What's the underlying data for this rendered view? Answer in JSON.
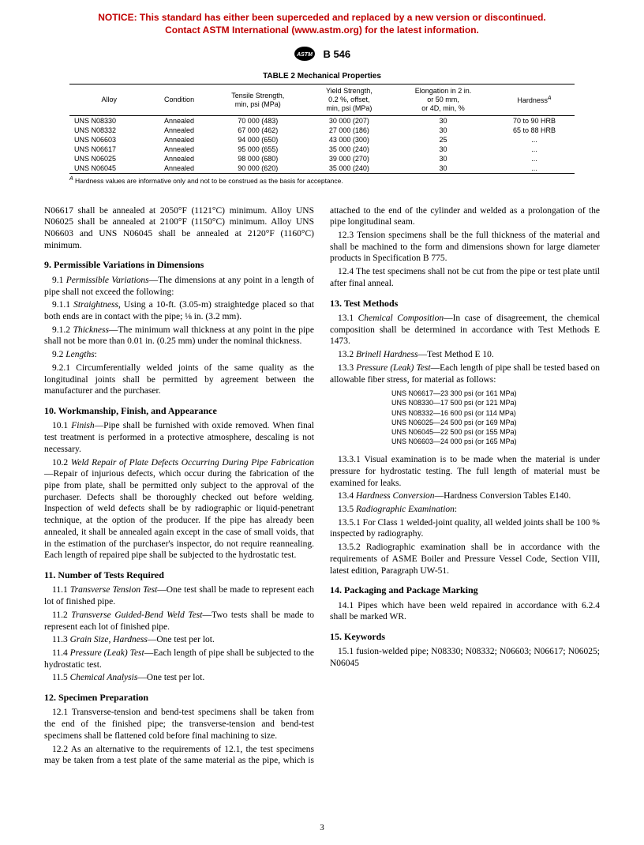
{
  "notice": {
    "line1": "NOTICE: This standard has either been superceded and replaced by a new version or discontinued.",
    "line2": "Contact ASTM International (www.astm.org) for the latest information."
  },
  "header": {
    "designation": "B 546"
  },
  "table": {
    "title": "TABLE 2  Mechanical Properties",
    "columns": [
      "Alloy",
      "Condition",
      "Tensile Strength,\nmin, psi (MPa)",
      "Yield Strength,\n0.2 %, offset,\nmin, psi (MPa)",
      "Elongation in 2 in.\nor 50 mm,\nor 4D, min, %",
      "Hardness"
    ],
    "hardness_sup": "A",
    "rows": [
      [
        "UNS N08330",
        "Annealed",
        "70 000 (483)",
        "30 000 (207)",
        "30",
        "70 to 90 HRB"
      ],
      [
        "UNS N08332",
        "Annealed",
        "67 000 (462)",
        "27 000 (186)",
        "30",
        "65 to 88 HRB"
      ],
      [
        "UNS N06603",
        "Annealed",
        "94 000 (650)",
        "43 000 (300)",
        "25",
        "..."
      ],
      [
        "UNS N06617",
        "Annealed",
        "95 000 (655)",
        "35 000 (240)",
        "30",
        "..."
      ],
      [
        "UNS N06025",
        "Annealed",
        "98 000 (680)",
        "39 000 (270)",
        "30",
        "..."
      ],
      [
        "UNS N06045",
        "Annealed",
        "90 000 (620)",
        "35 000 (240)",
        "30",
        "..."
      ]
    ],
    "footnote_label": "A",
    "footnote": " Hardness values are informative only and not to be construed as the basis for acceptance."
  },
  "body": {
    "lead": "N06617 shall be annealed at 2050°F (1121°C) minimum. Alloy UNS N06025 shall be annealed at 2100°F (1150°C) minimum. Alloy UNS N06603 and UNS N06045 shall be annealed at 2120°F (1160°C) minimum.",
    "s9": {
      "title": "9.  Permissible Variations in Dimensions",
      "p91_lead": "9.1 ",
      "p91_ital": "Permissible Variations",
      "p91_rest": "—The dimensions at any point in a length of pipe shall not exceed the following:",
      "p911_lead": "9.1.1 ",
      "p911_ital": "Straightness",
      "p911_rest": ", Using a 10-ft. (3.05-m) straightedge placed so that both ends are in contact with the pipe; ⅛ in. (3.2 mm).",
      "p912_lead": "9.1.2 ",
      "p912_ital": "Thickness",
      "p912_rest": "—The minimum wall thickness at any point in the pipe shall not be more than 0.01 in. (0.25 mm) under the nominal thickness.",
      "p92_lead": "9.2 ",
      "p92_ital": "Lengths",
      "p92_rest": ":",
      "p921": "9.2.1 Circumferentially welded joints of the same quality as the longitudinal joints shall be permitted by agreement between the manufacturer and the purchaser."
    },
    "s10": {
      "title": "10.  Workmanship, Finish, and Appearance",
      "p101_lead": "10.1 ",
      "p101_ital": "Finish",
      "p101_rest": "—Pipe shall be furnished with oxide removed. When final test treatment is performed in a protective atmosphere, descaling is not necessary.",
      "p102_lead": "10.2 ",
      "p102_ital": "Weld Repair of Plate Defects Occurring During Pipe Fabrication",
      "p102_rest": "—Repair of injurious defects, which occur during the fabrication of the pipe from plate, shall be permitted only subject to the approval of the purchaser. Defects shall be thoroughly checked out before welding. Inspection of weld defects shall be by radiographic or liquid-penetrant technique, at the option of the producer. If the pipe has already been annealed, it shall be annealed again except in the case of small voids, that in the estimation of the purchaser's inspector, do not require reannealing. Each length of repaired pipe shall be subjected to the hydrostatic test."
    },
    "s11": {
      "title": "11.  Number of Tests Required",
      "p111_lead": "11.1 ",
      "p111_ital": "Transverse Tension Test",
      "p111_rest": "—One test shall be made to represent each lot of finished pipe.",
      "p112_lead": "11.2 ",
      "p112_ital": "Transverse Guided-Bend Weld Test",
      "p112_rest": "—Two tests shall be made to represent each lot of finished pipe.",
      "p113_lead": "11.3 ",
      "p113_ital": "Grain Size, Hardness",
      "p113_rest": "—One test per lot.",
      "p114_lead": "11.4 ",
      "p114_ital": "Pressure (Leak) Test",
      "p114_rest": "—Each length of pipe shall be subjected to the hydrostatic test.",
      "p115_lead": "11.5 ",
      "p115_ital": "Chemical Analysis",
      "p115_rest": "—One test per lot."
    },
    "s12": {
      "title": "12.  Specimen Preparation",
      "p121": "12.1 Transverse-tension and bend-test specimens shall be taken from the end of the finished pipe; the transverse-tension and bend-test specimens shall be flattened cold before final machining to size.",
      "p122": "12.2 As an alternative to the requirements of 12.1, the test specimens may be taken from a test plate of the same material as the pipe, which is attached to the end of the cylinder and welded as a prolongation of the pipe longitudinal seam.",
      "p123": "12.3 Tension specimens shall be the full thickness of the material and shall be machined to the form and dimensions shown for large diameter products in Specification B 775.",
      "p124": "12.4 The test specimens shall not be cut from the pipe or test plate until after final anneal."
    },
    "s13": {
      "title": "13.  Test Methods",
      "p131_lead": "13.1 ",
      "p131_ital": "Chemical Composition",
      "p131_rest": "—In case of disagreement, the chemical composition shall be determined in accordance with Test Methods E 1473.",
      "p132_lead": "13.2 ",
      "p132_ital": "Brinell Hardness",
      "p132_rest": "—Test Method E 10.",
      "p133_lead": "13.3 ",
      "p133_ital": "Pressure (Leak) Test",
      "p133_rest": "—Each length of pipe shall be tested based on allowable fiber stress, for material as follows:",
      "pressure": [
        "UNS N06617—23 300 psi (or 161 MPa)",
        "UNS N08330—17 500 psi (or 121 MPa)",
        "UNS N08332—16 600 psi (or 114 MPa)",
        "UNS N06025—24 500 psi (or 169 MPa)",
        "UNS N06045—22 500 psi (or 155 MPa)",
        "UNS N06603—24 000 psi (or 165 MPa)"
      ],
      "p1331": "13.3.1 Visual examination is to be made when the material is under pressure for hydrostatic testing. The full length of material must be examined for leaks.",
      "p134_lead": "13.4 ",
      "p134_ital": "Hardness Conversion",
      "p134_rest": "—Hardness Conversion Tables E140.",
      "p135_lead": "13.5 ",
      "p135_ital": "Radiographic Examination",
      "p135_rest": ":",
      "p1351": "13.5.1 For Class 1 welded-joint quality, all welded joints shall be 100 % inspected by radiography.",
      "p1352": "13.5.2 Radiographic examination shall be in accordance with the requirements of ASME Boiler and Pressure Vessel Code, Section VIII, latest edition, Paragraph UW-51."
    },
    "s14": {
      "title": "14.  Packaging and Package Marking",
      "p141": "14.1 Pipes which have been weld repaired in accordance with 6.2.4 shall be marked WR."
    },
    "s15": {
      "title": "15.  Keywords",
      "p151": "15.1 fusion-welded pipe; N08330; N08332; N06603; N06617; N06025; N06045"
    }
  },
  "pageno": "3"
}
